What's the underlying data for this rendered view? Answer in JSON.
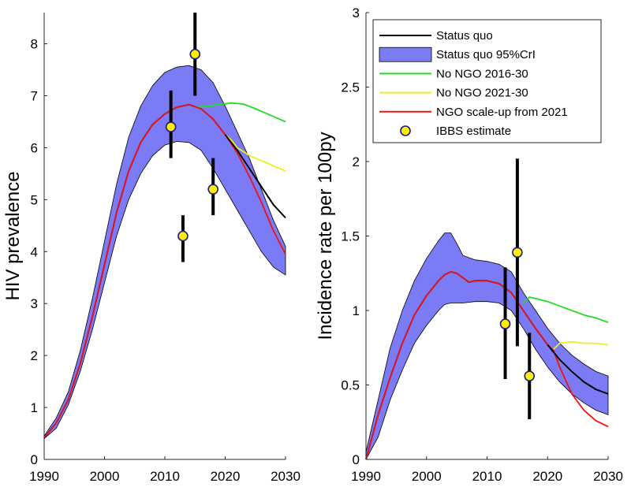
{
  "chart_data": [
    {
      "type": "line",
      "ylabel": "HIV prevalence",
      "xlabel": "",
      "xlim": [
        1990,
        2030
      ],
      "ylim": [
        0,
        8.6
      ],
      "xticks": [
        1990,
        2000,
        2010,
        2020,
        2030
      ],
      "yticks": [
        0,
        1,
        2,
        3,
        4,
        5,
        6,
        7,
        8
      ],
      "band": {
        "name": "Status quo 95%CrI",
        "x": [
          1990,
          1992,
          1994,
          1996,
          1998,
          2000,
          2002,
          2004,
          2006,
          2008,
          2010,
          2012,
          2014,
          2016,
          2018,
          2020,
          2022,
          2024,
          2026,
          2028,
          2030
        ],
        "upper": [
          0.45,
          0.8,
          1.3,
          2.1,
          3.1,
          4.2,
          5.3,
          6.2,
          6.8,
          7.2,
          7.45,
          7.55,
          7.58,
          7.5,
          7.25,
          6.8,
          6.3,
          5.8,
          5.2,
          4.6,
          4.1
        ],
        "lower": [
          0.4,
          0.6,
          1.05,
          1.7,
          2.5,
          3.4,
          4.3,
          5.0,
          5.5,
          5.85,
          6.05,
          6.12,
          6.1,
          5.95,
          5.6,
          5.2,
          4.8,
          4.4,
          4.0,
          3.7,
          3.55
        ]
      },
      "series": [
        {
          "name": "Status quo",
          "color": "#000000",
          "x": [
            1990,
            1992,
            1994,
            1996,
            1998,
            2000,
            2002,
            2004,
            2006,
            2008,
            2010,
            2012,
            2014,
            2016,
            2018,
            2020,
            2022,
            2024,
            2026,
            2028,
            2030
          ],
          "y": [
            0.42,
            0.7,
            1.15,
            1.85,
            2.75,
            3.75,
            4.75,
            5.55,
            6.1,
            6.45,
            6.65,
            6.78,
            6.83,
            6.75,
            6.55,
            6.25,
            5.95,
            5.6,
            5.25,
            4.9,
            4.65
          ]
        },
        {
          "name": "No NGO 2016-30",
          "color": "#22dd22",
          "x": [
            2015,
            2017,
            2019,
            2021,
            2023,
            2025,
            2027,
            2030
          ],
          "y": [
            6.78,
            6.8,
            6.83,
            6.86,
            6.84,
            6.75,
            6.65,
            6.5
          ]
        },
        {
          "name": "No NGO 2021-30",
          "color": "#eeee22",
          "x": [
            2020,
            2021,
            2022,
            2024,
            2026,
            2028,
            2030
          ],
          "y": [
            6.25,
            6.15,
            6.0,
            5.85,
            5.75,
            5.65,
            5.55
          ]
        },
        {
          "name": "NGO scale-up from 2021",
          "color": "#ee1111",
          "x": [
            1990,
            1992,
            1994,
            1996,
            1998,
            2000,
            2002,
            2004,
            2006,
            2008,
            2010,
            2012,
            2014,
            2016,
            2018,
            2020,
            2022,
            2024,
            2026,
            2028,
            2030
          ],
          "y": [
            0.42,
            0.7,
            1.15,
            1.85,
            2.75,
            3.75,
            4.75,
            5.55,
            6.1,
            6.45,
            6.65,
            6.78,
            6.83,
            6.75,
            6.55,
            6.25,
            5.9,
            5.45,
            4.95,
            4.4,
            3.95
          ]
        }
      ],
      "points": {
        "name": "IBBS estimate",
        "x": [
          2011,
          2013,
          2015,
          2018
        ],
        "y": [
          6.4,
          4.3,
          7.8,
          5.2
        ],
        "low": [
          5.8,
          3.8,
          7.0,
          4.7
        ],
        "high": [
          7.1,
          4.7,
          8.6,
          5.8
        ]
      }
    },
    {
      "type": "line",
      "ylabel": "Incidence rate per 100py",
      "xlabel": "",
      "xlim": [
        1990,
        2030
      ],
      "ylim": [
        0,
        3
      ],
      "xticks": [
        1990,
        2000,
        2010,
        2020,
        2030
      ],
      "yticks": [
        0,
        0.5,
        1,
        1.5,
        2,
        2.5,
        3
      ],
      "band": {
        "name": "Status quo 95%CrI",
        "x": [
          1990,
          1992,
          1994,
          1996,
          1998,
          2000,
          2002,
          2003,
          2004,
          2005,
          2006,
          2008,
          2010,
          2012,
          2014,
          2016,
          2018,
          2020,
          2022,
          2024,
          2026,
          2028,
          2030
        ],
        "upper": [
          0.05,
          0.4,
          0.75,
          1.0,
          1.2,
          1.35,
          1.47,
          1.52,
          1.52,
          1.45,
          1.37,
          1.34,
          1.33,
          1.31,
          1.26,
          1.12,
          1.0,
          0.88,
          0.78,
          0.7,
          0.64,
          0.59,
          0.56
        ],
        "lower": [
          0.0,
          0.15,
          0.4,
          0.6,
          0.78,
          0.9,
          1.0,
          1.04,
          1.05,
          1.05,
          1.05,
          1.06,
          1.06,
          1.05,
          1.0,
          0.88,
          0.74,
          0.62,
          0.52,
          0.44,
          0.38,
          0.33,
          0.3
        ]
      },
      "series": [
        {
          "name": "Status quo",
          "color": "#000000",
          "x": [
            1990,
            1992,
            1994,
            1996,
            1998,
            2000,
            2002,
            2003,
            2004,
            2005,
            2006,
            2007,
            2008,
            2010,
            2012,
            2014,
            2016,
            2018,
            2020,
            2022,
            2024,
            2026,
            2028,
            2030
          ],
          "y": [
            0.0,
            0.3,
            0.55,
            0.78,
            0.97,
            1.1,
            1.2,
            1.24,
            1.26,
            1.25,
            1.22,
            1.19,
            1.2,
            1.2,
            1.18,
            1.12,
            1.0,
            0.88,
            0.77,
            0.67,
            0.59,
            0.52,
            0.47,
            0.44
          ]
        },
        {
          "name": "No NGO 2016-30",
          "color": "#22dd22",
          "x": [
            2016,
            2017,
            2018,
            2020,
            2022,
            2024,
            2026,
            2028,
            2030
          ],
          "y": [
            1.05,
            1.09,
            1.08,
            1.06,
            1.03,
            1.0,
            0.97,
            0.95,
            0.92
          ]
        },
        {
          "name": "No NGO 2021-30",
          "color": "#eeee22",
          "x": [
            2021,
            2021.5,
            2022,
            2024,
            2026,
            2028,
            2030
          ],
          "y": [
            0.74,
            0.76,
            0.78,
            0.79,
            0.78,
            0.78,
            0.77
          ]
        },
        {
          "name": "NGO scale-up from 2021",
          "color": "#ee1111",
          "x": [
            1990,
            1992,
            1994,
            1996,
            1998,
            2000,
            2002,
            2003,
            2004,
            2005,
            2006,
            2007,
            2008,
            2010,
            2012,
            2014,
            2016,
            2018,
            2020,
            2021,
            2022,
            2024,
            2026,
            2028,
            2030
          ],
          "y": [
            0.0,
            0.3,
            0.55,
            0.78,
            0.97,
            1.1,
            1.2,
            1.24,
            1.26,
            1.25,
            1.22,
            1.19,
            1.2,
            1.2,
            1.18,
            1.12,
            1.0,
            0.88,
            0.77,
            0.73,
            0.62,
            0.44,
            0.33,
            0.26,
            0.22
          ]
        }
      ],
      "points": {
        "name": "IBBS estimate",
        "x": [
          2013,
          2015,
          2017
        ],
        "y": [
          0.91,
          1.39,
          0.56
        ],
        "low": [
          0.54,
          0.76,
          0.27
        ],
        "high": [
          1.29,
          2.02,
          0.85
        ]
      }
    }
  ],
  "legend": {
    "placement": "top-right of right panel",
    "items": [
      {
        "label": "Status quo",
        "kind": "line",
        "color": "#000000"
      },
      {
        "label": "Status quo 95%CrI",
        "kind": "patch",
        "color": "#7b7cf5"
      },
      {
        "label": "No NGO 2016-30",
        "kind": "line",
        "color": "#22dd22"
      },
      {
        "label": "No NGO 2021-30",
        "kind": "line",
        "color": "#eeee22"
      },
      {
        "label": "NGO scale-up from 2021",
        "kind": "line",
        "color": "#ee1111"
      },
      {
        "label": "IBBS estimate",
        "kind": "marker",
        "color": "#ffee00"
      }
    ]
  },
  "colors": {
    "band_fill": "#7b7cf5",
    "marker_fill": "#ffee00",
    "marker_edge": "#1a1a8c",
    "errorbar": "#000000"
  }
}
